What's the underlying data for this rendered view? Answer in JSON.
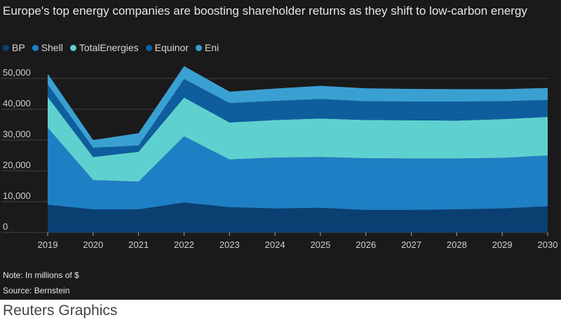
{
  "title": "Europe's top energy companies are boosting shareholder returns as they shift to low-carbon energy",
  "note": "Note: In millions of $",
  "source": "Source: Bernstein",
  "credit": "Reuters Graphics",
  "colors": {
    "background": "#1a1a1a",
    "BP": "#0b3f72",
    "Shell": "#1f7fc4",
    "TotalEnergies": "#5fd0d0",
    "Equinor": "#0e5e9e",
    "Eni": "#3aa0d2"
  },
  "chart_data": {
    "type": "area",
    "stacked": true,
    "x": [
      "2019",
      "2020",
      "2021",
      "2022",
      "2023",
      "2024",
      "2025",
      "2026",
      "2027",
      "2028",
      "2029",
      "2030"
    ],
    "series": [
      {
        "name": "BP",
        "color": "#0b3f72",
        "values": [
          9000,
          7500,
          7500,
          9700,
          8200,
          7800,
          8000,
          7300,
          7300,
          7500,
          7800,
          8500
        ]
      },
      {
        "name": "Shell",
        "color": "#1f7fc4",
        "values": [
          25000,
          9500,
          9000,
          21500,
          15500,
          16500,
          16500,
          16800,
          16700,
          16500,
          16400,
          16500
        ]
      },
      {
        "name": "TotalEnergies",
        "color": "#5fd0d0",
        "values": [
          10000,
          7500,
          9700,
          12600,
          12000,
          12200,
          12500,
          12400,
          12400,
          12300,
          12600,
          12500
        ]
      },
      {
        "name": "Equinor",
        "color": "#0e5e9e",
        "values": [
          4000,
          3000,
          2000,
          6000,
          6300,
          6200,
          6300,
          6100,
          6100,
          6200,
          5800,
          5500
        ]
      },
      {
        "name": "Eni",
        "color": "#3aa0d2",
        "values": [
          3500,
          2500,
          4000,
          4200,
          3700,
          4000,
          4300,
          4200,
          4100,
          4000,
          3900,
          3900
        ]
      }
    ],
    "yticks": [
      "0",
      "10,000",
      "20,000",
      "30,000",
      "40,000",
      "50,000"
    ],
    "ylim": [
      0,
      55000
    ],
    "grid": true,
    "legend": "top-left"
  }
}
